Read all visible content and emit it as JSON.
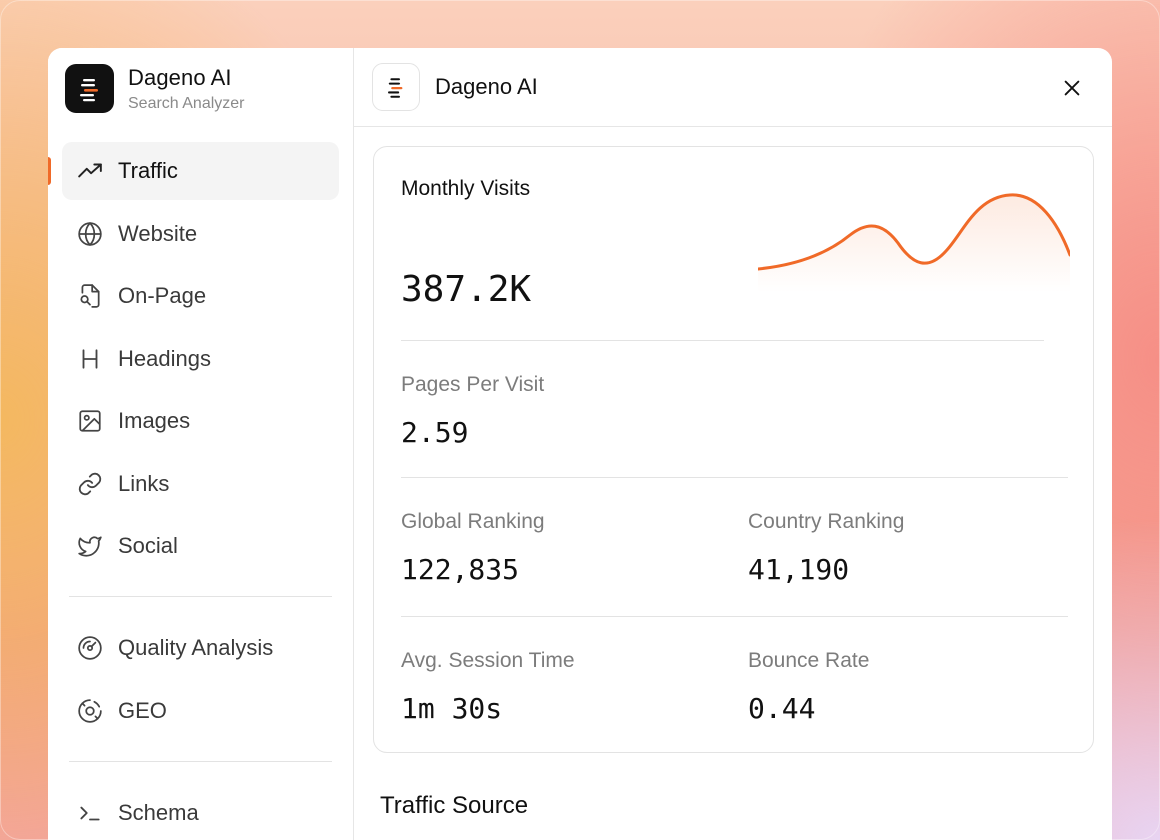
{
  "brand": {
    "name": "Dageno AI",
    "subtitle": "Search Analyzer"
  },
  "sidebar": {
    "items": [
      {
        "label": "Traffic",
        "icon": "trending-up-icon",
        "active": true
      },
      {
        "label": "Website",
        "icon": "globe-icon"
      },
      {
        "label": "On-Page",
        "icon": "file-search-icon"
      },
      {
        "label": "Headings",
        "icon": "heading-icon"
      },
      {
        "label": "Images",
        "icon": "image-icon"
      },
      {
        "label": "Links",
        "icon": "link-icon"
      },
      {
        "label": "Social",
        "icon": "twitter-icon"
      }
    ],
    "items2": [
      {
        "label": "Quality Analysis",
        "icon": "gauge-icon"
      },
      {
        "label": "GEO",
        "icon": "geo-icon"
      }
    ],
    "items3": [
      {
        "label": "Schema",
        "icon": "terminal-icon"
      }
    ]
  },
  "topbar": {
    "title": "Dageno AI"
  },
  "stats": {
    "monthly_visits": {
      "label": "Monthly Visits",
      "value": "387.2K"
    },
    "pages_per_visit": {
      "label": "Pages Per Visit",
      "value": "2.59"
    },
    "global_ranking": {
      "label": "Global Ranking",
      "value": "122,835"
    },
    "country_ranking": {
      "label": "Country Ranking",
      "value": "41,190"
    },
    "avg_session_time": {
      "label": "Avg. Session Time",
      "value": "1m 30s"
    },
    "bounce_rate": {
      "label": "Bounce Rate",
      "value": "0.44"
    }
  },
  "section": {
    "traffic_source": "Traffic Source"
  },
  "colors": {
    "accent": "#f06a28",
    "text": "#111111",
    "muted": "#7c7c7c"
  }
}
